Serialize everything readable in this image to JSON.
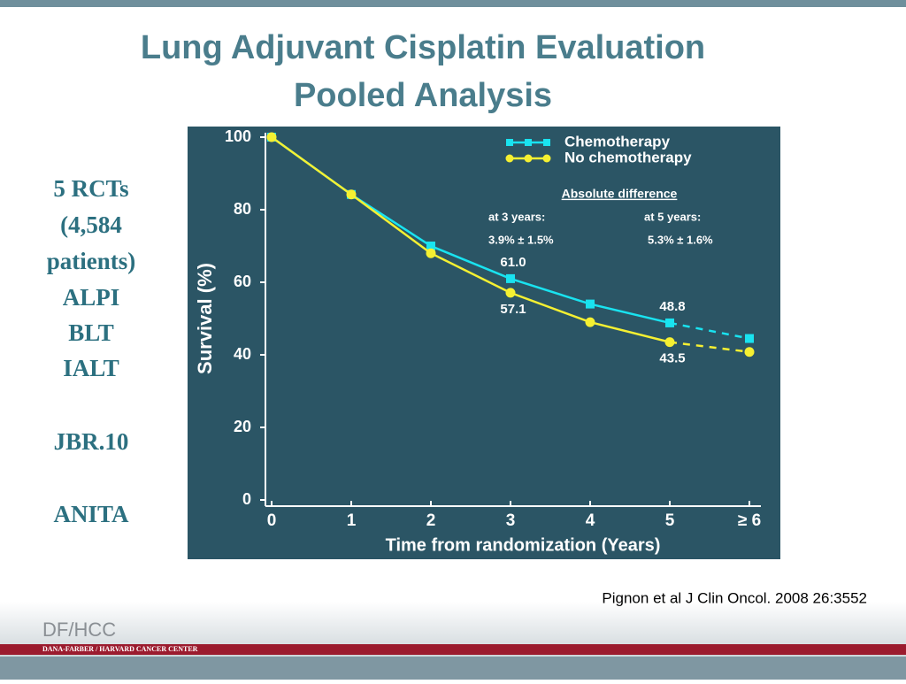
{
  "slide": {
    "title_lines": [
      "Lung Adjuvant Cisplatin Evaluation",
      "Pooled Analysis"
    ],
    "side_text": [
      "5 RCTs",
      "(4,584",
      "patients)",
      "ALPI",
      "BLT",
      "IALT",
      "JBR.10",
      "ANITA"
    ],
    "citation": "Pignon et al  J Clin Oncol. 2008 26:3552",
    "logo": "DF/HCC",
    "logo_subtitle": "DANA-FARBER / HARVARD CANCER CENTER"
  },
  "chart_data": {
    "type": "line",
    "x_label": "Time from randomization (Years)",
    "y_label": "Survival (%)",
    "x": [
      0,
      1,
      2,
      3,
      4,
      5,
      6
    ],
    "xlim": [
      0,
      6
    ],
    "xticks": [
      0,
      1,
      2,
      3,
      4,
      5,
      {
        "value": 6,
        "label": "≥ 6"
      }
    ],
    "ylim": [
      0,
      100
    ],
    "yticks": [
      0,
      20,
      40,
      60,
      80,
      100
    ],
    "dashed_from_x": 5,
    "legend": "upper right",
    "series": [
      {
        "name": "Chemotherapy",
        "color": "#19e3f0",
        "marker": "square",
        "values": [
          100,
          84.2,
          70,
          61.0,
          54,
          48.8,
          44.5
        ],
        "value_labels": [
          null,
          null,
          null,
          "61.0",
          null,
          "48.8",
          null
        ]
      },
      {
        "name": "No chemotherapy",
        "color": "#f5f032",
        "marker": "circle",
        "values": [
          100,
          84.2,
          68,
          57.1,
          49,
          43.5,
          40.8
        ],
        "value_labels": [
          null,
          null,
          null,
          "57.1",
          null,
          "43.5",
          null
        ]
      }
    ],
    "annotations": [
      "Absolute difference",
      "at 3 years:",
      "at 5 years:",
      "3.9% ± 1.5%",
      "5.3% ± 1.6%"
    ]
  }
}
